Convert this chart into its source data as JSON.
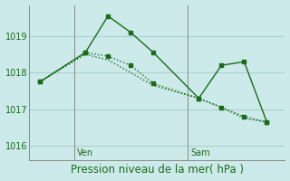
{
  "background_color": "#cdeaea",
  "grid_color": "#aad0d0",
  "line_color": "#1a6b1a",
  "series1_x": [
    0,
    2,
    3,
    4,
    5,
    7,
    8,
    9,
    10
  ],
  "series1_y": [
    1017.75,
    1018.55,
    1019.55,
    1019.1,
    1018.55,
    1017.3,
    1018.2,
    1018.3,
    1016.65
  ],
  "series2_x": [
    0,
    2,
    3,
    4,
    5,
    7,
    8,
    9,
    10
  ],
  "series2_y": [
    1017.75,
    1018.55,
    1018.45,
    1018.2,
    1017.7,
    1017.3,
    1017.05,
    1016.8,
    1016.65
  ],
  "series3_x": [
    0,
    2,
    3,
    4,
    5,
    7,
    8,
    9,
    10
  ],
  "series3_y": [
    1017.75,
    1018.5,
    1018.35,
    1018.0,
    1017.65,
    1017.3,
    1017.05,
    1016.75,
    1016.65
  ],
  "yticks": [
    1016,
    1017,
    1018,
    1019
  ],
  "ylim": [
    1015.6,
    1019.85
  ],
  "xlim": [
    -0.5,
    10.8
  ],
  "ven_x": 1.5,
  "sam_x": 6.5,
  "xlabel": "Pression niveau de la mer( hPa )",
  "xlabel_fontsize": 8.5
}
